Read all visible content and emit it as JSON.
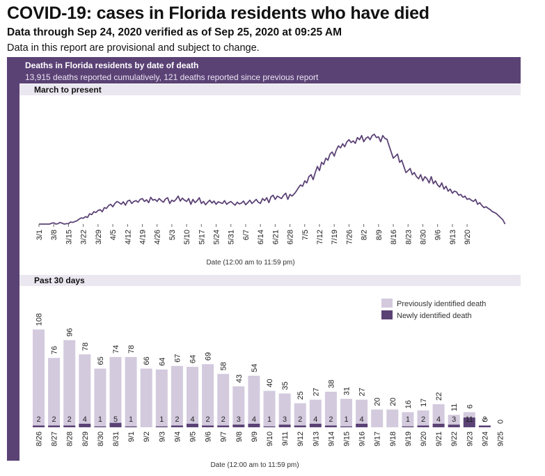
{
  "page": {
    "title": "COVID-19: cases in Florida residents who have died",
    "subtitle": "Data through Sep 24, 2020 verified as of Sep 25, 2020 at 09:25 AM",
    "note": "Data in this report are provisional and subject to change."
  },
  "panel": {
    "title": "Deaths in Florida residents by date of death",
    "subtitle": "13,915 deaths reported cumulatively, 121 deaths reported since previous report"
  },
  "colors": {
    "panel": "#5b4275",
    "line": "#5b4275",
    "previous": "#d3cade",
    "new": "#5b4275",
    "section_bg": "#ebe7f0"
  },
  "chart_data": [
    {
      "type": "line",
      "section_label": "March to present",
      "xlabel": "Date (12:00 am to 11:59 pm)",
      "x_ticks": [
        "3/1",
        "3/8",
        "3/15",
        "3/22",
        "3/29",
        "4/5",
        "4/12",
        "4/19",
        "4/26",
        "5/3",
        "5/10",
        "5/17",
        "5/24",
        "5/31",
        "6/7",
        "6/14",
        "6/21",
        "6/28",
        "7/5",
        "7/12",
        "7/19",
        "7/26",
        "8/2",
        "8/9",
        "8/16",
        "8/23",
        "8/30",
        "9/6",
        "9/13",
        "9/20"
      ],
      "start_date": "3/1",
      "grid": false,
      "values": [
        0,
        0,
        0,
        0,
        0,
        0,
        2,
        3,
        0,
        1,
        4,
        2,
        0,
        1,
        1,
        5,
        4,
        6,
        8,
        12,
        15,
        14,
        18,
        16,
        25,
        23,
        30,
        28,
        33,
        35,
        30,
        40,
        38,
        45,
        48,
        42,
        50,
        55,
        52,
        48,
        54,
        46,
        56,
        58,
        50,
        55,
        57,
        53,
        60,
        62,
        55,
        59,
        52,
        65,
        58,
        60,
        55,
        62,
        57,
        53,
        61,
        64,
        50,
        58,
        55,
        60,
        68,
        56,
        63,
        58,
        55,
        62,
        48,
        60,
        52,
        57,
        64,
        50,
        55,
        47,
        53,
        58,
        51,
        56,
        48,
        54,
        52,
        50,
        57,
        48,
        52,
        55,
        50,
        46,
        53,
        49,
        51,
        56,
        47,
        52,
        58,
        50,
        55,
        60,
        53,
        50,
        62,
        57,
        64,
        52,
        66,
        70,
        60,
        68,
        65,
        62,
        70,
        75,
        60,
        72,
        68,
        73,
        80,
        88,
        95,
        92,
        105,
        100,
        115,
        120,
        108,
        125,
        140,
        130,
        150,
        145,
        160,
        155,
        170,
        175,
        165,
        180,
        190,
        185,
        195,
        188,
        200,
        205,
        198,
        202,
        196,
        210,
        205,
        215,
        200,
        208,
        212,
        205,
        215,
        218,
        210,
        212,
        200,
        215,
        208,
        206,
        190,
        175,
        160,
        165,
        170,
        150,
        155,
        140,
        125,
        130,
        135,
        120,
        125,
        115,
        110,
        120,
        105,
        115,
        110,
        100,
        115,
        98,
        105,
        95,
        90,
        100,
        85,
        92,
        80,
        85,
        75,
        80,
        78,
        70,
        72,
        65,
        68,
        60,
        62,
        58,
        55,
        60,
        48,
        52,
        45,
        40,
        42,
        38,
        35,
        30,
        28,
        25,
        20,
        15,
        10,
        0
      ]
    },
    {
      "type": "bar",
      "stacked": true,
      "section_label": "Past 30 days",
      "xlabel": "Date (12:00 am to 11:59 pm)",
      "legend_position": "top-right",
      "grid": false,
      "categories": [
        "8/26",
        "8/27",
        "8/28",
        "8/29",
        "8/30",
        "8/31",
        "9/1",
        "9/2",
        "9/3",
        "9/4",
        "9/5",
        "9/6",
        "9/7",
        "9/8",
        "9/9",
        "9/10",
        "9/11",
        "9/12",
        "9/13",
        "9/14",
        "9/15",
        "9/16",
        "9/17",
        "9/18",
        "9/19",
        "9/20",
        "9/21",
        "9/22",
        "9/23",
        "9/24",
        "9/25"
      ],
      "series": [
        {
          "name": "Previously identified death",
          "values": [
            108,
            76,
            96,
            78,
            65,
            74,
            78,
            66,
            64,
            67,
            64,
            69,
            58,
            43,
            54,
            40,
            35,
            25,
            27,
            38,
            31,
            27,
            20,
            20,
            16,
            17,
            22,
            11,
            6,
            0,
            0
          ]
        },
        {
          "name": "Newly identified death",
          "values": [
            2,
            2,
            2,
            4,
            1,
            5,
            1,
            null,
            1,
            2,
            4,
            2,
            2,
            3,
            4,
            1,
            3,
            2,
            4,
            2,
            1,
            4,
            null,
            null,
            1,
            2,
            4,
            3,
            11,
            2,
            null
          ]
        }
      ]
    }
  ]
}
